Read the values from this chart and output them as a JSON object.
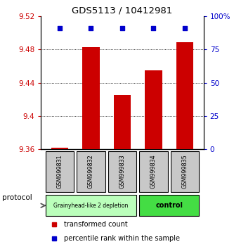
{
  "title": "GDS5113 / 10412981",
  "samples": [
    "GSM999831",
    "GSM999832",
    "GSM999833",
    "GSM999834",
    "GSM999835"
  ],
  "bar_values": [
    9.362,
    9.483,
    9.425,
    9.455,
    9.489
  ],
  "bar_base": 9.36,
  "percentile_values": [
    91,
    91,
    91,
    91,
    91
  ],
  "ylim_left": [
    9.36,
    9.52
  ],
  "ylim_right": [
    0,
    100
  ],
  "yticks_left": [
    9.36,
    9.4,
    9.44,
    9.48,
    9.52
  ],
  "ytick_labels_left": [
    "9.36",
    "9.4",
    "9.44",
    "9.48",
    "9.52"
  ],
  "yticks_right": [
    0,
    25,
    50,
    75,
    100
  ],
  "ytick_labels_right": [
    "0",
    "25",
    "50",
    "75",
    "100%"
  ],
  "bar_color": "#cc0000",
  "percentile_color": "#0000cc",
  "group1_indices": [
    0,
    1,
    2
  ],
  "group2_indices": [
    3,
    4
  ],
  "group1_label": "Grainyhead-like 2 depletion",
  "group2_label": "control",
  "group1_color": "#bbffbb",
  "group2_color": "#44dd44",
  "protocol_label": "protocol",
  "legend_bar_label": "transformed count",
  "legend_pct_label": "percentile rank within the sample",
  "bg_color": "#ffffff",
  "sample_bg_color": "#c8c8c8",
  "bar_width": 0.55
}
